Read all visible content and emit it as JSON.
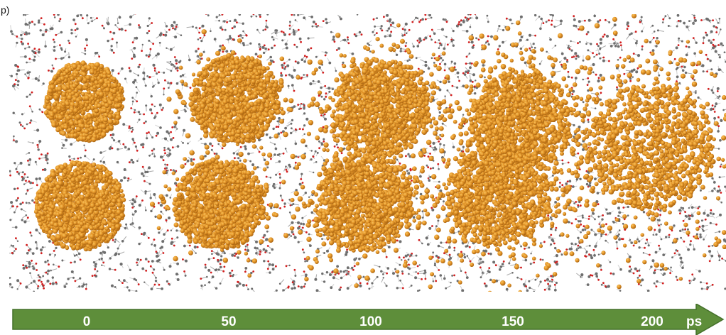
{
  "panel_label": "p)",
  "timeline": {
    "ticks": [
      "0",
      "50",
      "100",
      "150",
      "200"
    ],
    "unit": "ps",
    "colors": {
      "fill": "#5e8e3a",
      "edge": "#44702a"
    }
  },
  "colors": {
    "cluster_atom": "#e89a2c",
    "cluster_atom_highlight": "#f6c25e",
    "cluster_atom_shadow": "#a8620f",
    "solvent_carbon": "#6e6e6e",
    "solvent_oxygen": "#d21e1e",
    "solvent_hydrogen": "#cfcfcf",
    "background": "#ffffff"
  },
  "snapshots": [
    {
      "time": "0",
      "state": "two separate spherical nanoparticles"
    },
    {
      "time": "50",
      "state": "two particles approaching"
    },
    {
      "time": "100",
      "state": "particles in contact"
    },
    {
      "time": "150",
      "state": "particles coalescing"
    },
    {
      "time": "200",
      "state": "single merged cluster"
    }
  ]
}
